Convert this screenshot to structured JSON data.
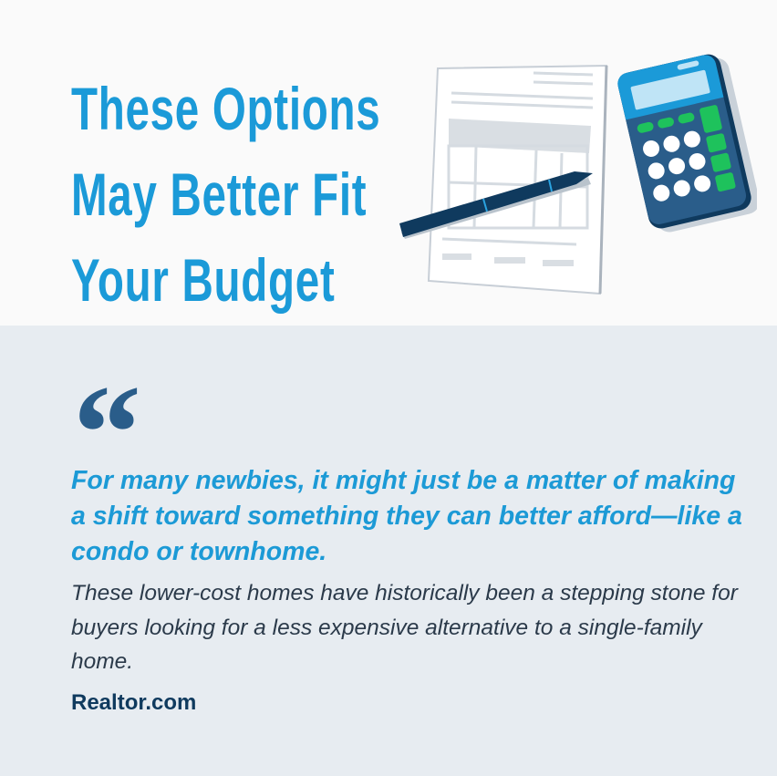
{
  "header": {
    "title_lines": [
      "These Options",
      "May Better Fit",
      "Your Budget"
    ],
    "illustration": "paper-pen-calculator-illustration"
  },
  "quote": {
    "icon": "quotation-mark-icon",
    "lead": "For many newbies, it might just be a matter of making a shift toward something they can better afford—like a condo or townhome.",
    "body": "These lower-cost homes have historically been a stepping stone for buyers looking for a less expensive alternative to a single-family home.",
    "source": "Realtor.com"
  },
  "colors": {
    "title": "#1b9ad8",
    "panel_bg": "#e7ecf1",
    "quote_mark": "#2a5d8a",
    "source": "#0f3a5e",
    "calculator_green": "#1ec25c"
  }
}
